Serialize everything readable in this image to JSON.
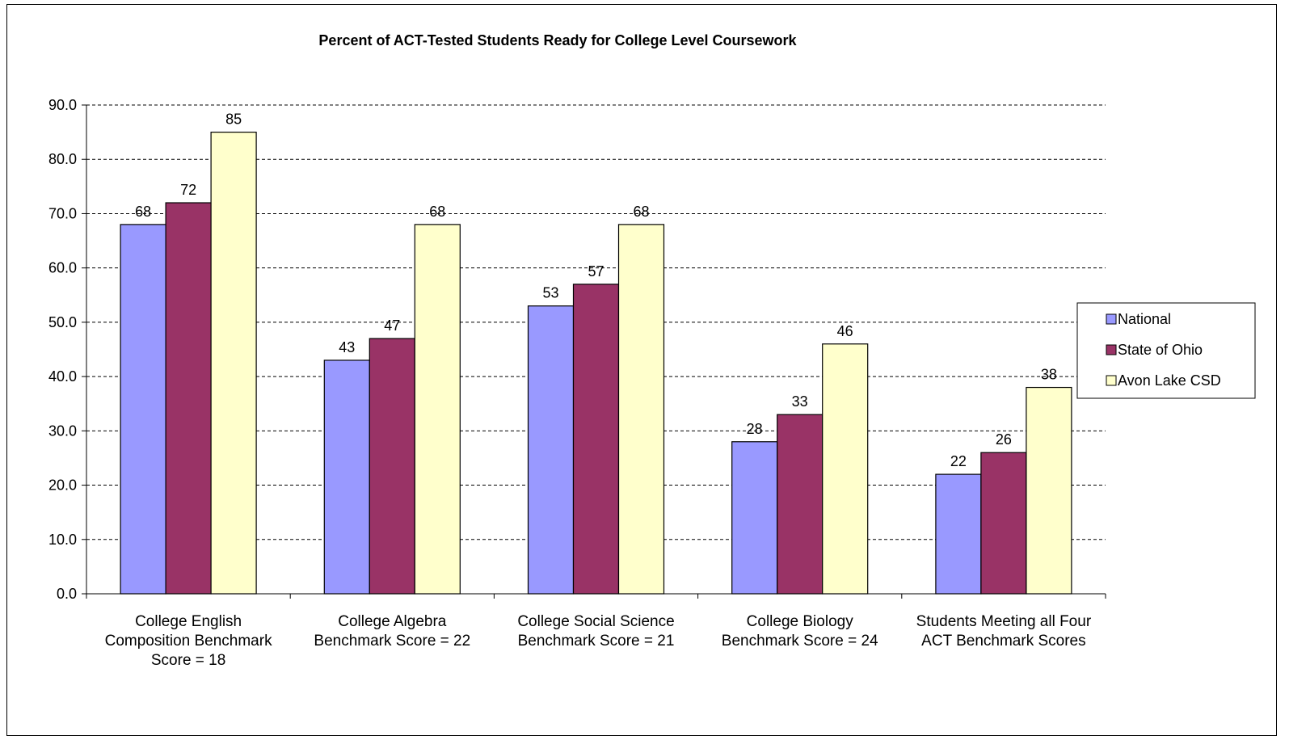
{
  "chart_data": {
    "type": "bar",
    "title": "Percent of ACT-Tested Students Ready for College Level Coursework",
    "xlabel": "",
    "ylabel": "",
    "ylim": [
      0,
      90
    ],
    "ytick_labels": [
      "0.0",
      "10.0",
      "20.0",
      "30.0",
      "40.0",
      "50.0",
      "60.0",
      "70.0",
      "80.0",
      "90.0"
    ],
    "grid": true,
    "legend_position": "right",
    "categories": [
      [
        "College English",
        "Composition   Benchmark",
        "Score = 18"
      ],
      [
        "College Algebra",
        "Benchmark Score = 22"
      ],
      [
        "College Social Science",
        "Benchmark Score = 21"
      ],
      [
        "College Biology",
        "Benchmark Score = 24"
      ],
      [
        "Students Meeting all Four",
        "ACT Benchmark Scores"
      ]
    ],
    "series": [
      {
        "name": "National",
        "color": "#9999FF",
        "values": [
          68,
          43,
          53,
          28,
          22
        ]
      },
      {
        "name": "State of Ohio",
        "color": "#993366",
        "values": [
          72,
          47,
          57,
          33,
          26
        ]
      },
      {
        "name": "Avon Lake CSD",
        "color": "#FFFFCC",
        "values": [
          85,
          68,
          68,
          46,
          38
        ]
      }
    ]
  }
}
